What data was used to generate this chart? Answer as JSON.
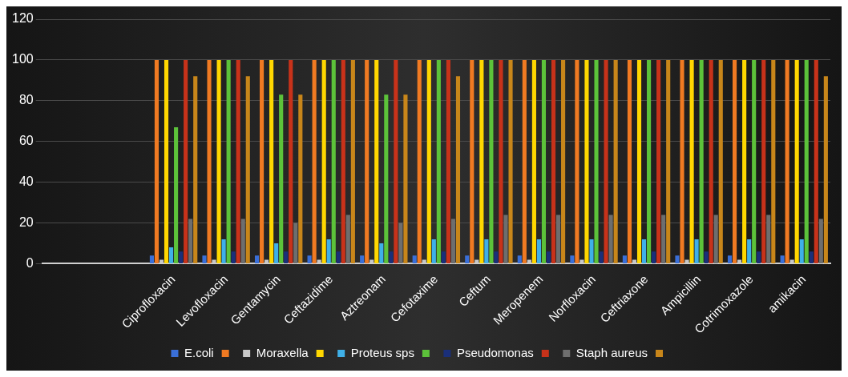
{
  "chart_data": {
    "type": "bar",
    "categories": [
      null,
      null,
      "Ciprofloxacin",
      "Levofloxacin",
      "Gentamycin",
      "Ceftazidime",
      "Aztreonam",
      "Cefotaxime",
      "Ceftum",
      "Meropenem",
      "Norfloxacin",
      "Ceftriaxone",
      "Ampicillin",
      "Cotrimoxazole",
      "amikacin"
    ],
    "series": [
      {
        "name": "E.coli",
        "color": "#3a6fd8",
        "values": [
          null,
          null,
          4,
          4,
          4,
          4,
          4,
          4,
          4,
          4,
          4,
          4,
          4,
          4,
          4
        ]
      },
      {
        "color": "#f07a22",
        "values": [
          null,
          null,
          100,
          100,
          100,
          100,
          100,
          100,
          100,
          100,
          100,
          100,
          100,
          100,
          100
        ]
      },
      {
        "name": "Moraxella",
        "color": "#c8c8c8",
        "values": [
          null,
          null,
          2,
          2,
          2,
          2,
          2,
          2,
          2,
          2,
          2,
          2,
          2,
          2,
          2
        ]
      },
      {
        "color": "#ffd700",
        "values": [
          null,
          null,
          100,
          100,
          100,
          100,
          100,
          100,
          100,
          100,
          100,
          100,
          100,
          100,
          100
        ]
      },
      {
        "name": "Proteus sps",
        "color": "#3fb0e8",
        "values": [
          null,
          null,
          8,
          12,
          10,
          12,
          10,
          12,
          12,
          12,
          12,
          12,
          12,
          12,
          12
        ]
      },
      {
        "color": "#5cc23a",
        "values": [
          null,
          null,
          67,
          100,
          83,
          100,
          83,
          100,
          100,
          100,
          100,
          100,
          100,
          100,
          100
        ]
      },
      {
        "name": "Pseudomonas",
        "color": "#1a2f7a",
        "values": [
          null,
          null,
          6,
          6,
          6,
          6,
          6,
          6,
          6,
          6,
          6,
          6,
          6,
          6,
          6
        ]
      },
      {
        "color": "#c8321a",
        "values": [
          null,
          null,
          100,
          100,
          100,
          100,
          100,
          100,
          100,
          100,
          100,
          100,
          100,
          100,
          100
        ]
      },
      {
        "name": "Staph aureus",
        "color": "#6e6e6e",
        "values": [
          null,
          null,
          22,
          22,
          20,
          24,
          20,
          22,
          24,
          24,
          24,
          24,
          24,
          24,
          22
        ]
      },
      {
        "color": "#c8861a",
        "values": [
          null,
          null,
          92,
          92,
          83,
          100,
          83,
          92,
          100,
          100,
          100,
          100,
          100,
          100,
          92
        ]
      }
    ],
    "ylim": [
      0,
      120
    ],
    "yticks": [
      0,
      20,
      40,
      60,
      80,
      100,
      120
    ],
    "grid": "y",
    "legend": "bottom"
  }
}
